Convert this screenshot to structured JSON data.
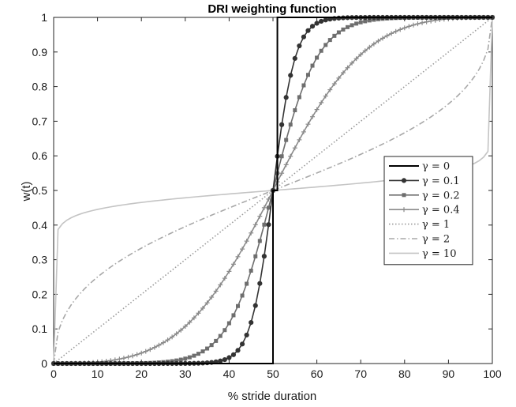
{
  "chart_data": {
    "type": "line",
    "title": "DRI weighting function",
    "xlabel": "% stride duration",
    "ylabel": "w(t)",
    "xlim": [
      0,
      100
    ],
    "ylim": [
      0,
      1
    ],
    "xticks": [
      0,
      10,
      20,
      30,
      40,
      50,
      60,
      70,
      80,
      90,
      100
    ],
    "xtick_labels": [
      "0",
      "10",
      "20",
      "30",
      "40",
      "50",
      "60",
      "70",
      "80",
      "90",
      "100"
    ],
    "yticks": [
      0,
      0.1,
      0.2,
      0.3,
      0.4,
      0.5,
      0.6,
      0.7,
      0.8,
      0.9,
      1
    ],
    "ytick_labels": [
      "0",
      "0.1",
      "0.2",
      "0.3",
      "0.4",
      "0.5",
      "0.6",
      "0.7",
      "0.8",
      "0.9",
      "1"
    ],
    "grid": false,
    "legend_position": "right",
    "x_sample_spacing": 1,
    "series": [
      {
        "name": "γ = 0",
        "gamma": 0,
        "color": "#000000",
        "line_style": "solid",
        "marker": "none",
        "x": [
          0,
          50,
          50,
          51,
          51,
          100
        ],
        "y": [
          0,
          0,
          0.5,
          0.5,
          1,
          1
        ]
      },
      {
        "name": "γ = 0.1",
        "gamma": 0.1,
        "color": "#333333",
        "line_style": "solid",
        "marker": "dot"
      },
      {
        "name": "γ = 0.2",
        "gamma": 0.2,
        "color": "#6e6e6e",
        "line_style": "solid",
        "marker": "square"
      },
      {
        "name": "γ = 0.4",
        "gamma": 0.4,
        "color": "#8a8a8a",
        "line_style": "solid",
        "marker": "plus"
      },
      {
        "name": "γ = 1",
        "gamma": 1,
        "color": "#9a9a9a",
        "line_style": "dotted",
        "marker": "none"
      },
      {
        "name": "γ = 2",
        "gamma": 2,
        "color": "#a8a8a8",
        "line_style": "dash-dot",
        "marker": "none"
      },
      {
        "name": "γ = 10",
        "gamma": 10,
        "color": "#c4c4c4",
        "line_style": "solid",
        "marker": "none"
      }
    ]
  }
}
